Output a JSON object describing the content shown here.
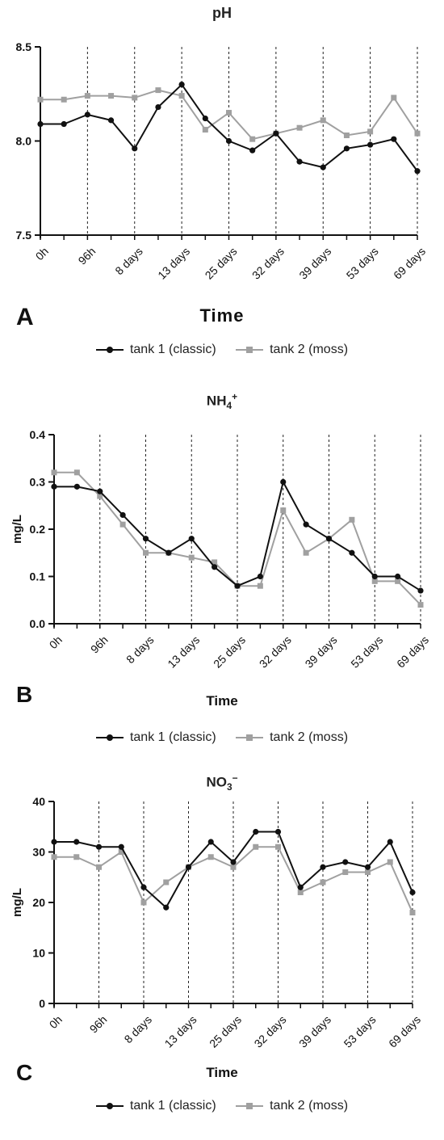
{
  "colors": {
    "tank1": "#111111",
    "tank2": "#a0a0a0"
  },
  "chart_data": [
    {
      "type": "line",
      "panel": "A",
      "title": "pH",
      "xlabel": "Time",
      "ylabel": "",
      "ylim": [
        7.5,
        8.5
      ],
      "yticks": [
        "7.5",
        "8.0",
        "8.5"
      ],
      "xtick_labels": [
        "0h",
        "96h",
        "8 days",
        "13 days",
        "25 days",
        "32 days",
        "39 days",
        "53 days",
        "69 days"
      ],
      "grid": "dashed vertical lines at labeled ticks",
      "legend": "bottom",
      "series": [
        {
          "name": "tank 1 (classic)",
          "marker": "circle",
          "values": [
            8.09,
            8.09,
            8.14,
            8.11,
            7.96,
            8.18,
            8.3,
            8.12,
            8.0,
            7.95,
            8.04,
            7.89,
            7.86,
            7.96,
            7.98,
            8.01,
            7.84
          ]
        },
        {
          "name": "tank 2 (moss)",
          "marker": "square",
          "values": [
            8.22,
            8.22,
            8.24,
            8.24,
            8.23,
            8.27,
            8.24,
            8.06,
            8.15,
            8.01,
            8.04,
            8.07,
            8.11,
            8.03,
            8.05,
            8.23,
            8.04
          ]
        }
      ]
    },
    {
      "type": "line",
      "panel": "B",
      "title": "NH4+",
      "title_base": "NH",
      "title_sub": "4",
      "title_sup": "+",
      "xlabel": "Time",
      "ylabel": "mg/L",
      "ylim": [
        0,
        0.4
      ],
      "yticks": [
        "0.0",
        "0.1",
        "0.2",
        "0.3",
        "0.4"
      ],
      "xtick_labels": [
        "0h",
        "96h",
        "8 days",
        "13 days",
        "25 days",
        "32 days",
        "39 days",
        "53 days",
        "69 days"
      ],
      "grid": "dashed vertical lines at labeled ticks",
      "legend": "bottom",
      "series": [
        {
          "name": "tank 1 (classic)",
          "marker": "circle",
          "values": [
            0.29,
            0.29,
            0.28,
            0.23,
            0.18,
            0.15,
            0.18,
            0.12,
            0.08,
            0.1,
            0.3,
            0.21,
            0.18,
            0.15,
            0.1,
            0.1,
            0.07
          ]
        },
        {
          "name": "tank 2 (moss)",
          "marker": "square",
          "values": [
            0.32,
            0.32,
            0.27,
            0.21,
            0.15,
            0.15,
            0.14,
            0.13,
            0.08,
            0.08,
            0.24,
            0.15,
            0.18,
            0.22,
            0.09,
            0.09,
            0.04
          ]
        }
      ]
    },
    {
      "type": "line",
      "panel": "C",
      "title": "NO3−",
      "title_base": "NO",
      "title_sub": "3",
      "title_sup": "−",
      "xlabel": "Time",
      "ylabel": "mg/L",
      "ylim": [
        0,
        40
      ],
      "yticks": [
        "0",
        "10",
        "20",
        "30",
        "40"
      ],
      "xtick_labels": [
        "0h",
        "96h",
        "8 days",
        "13 days",
        "25 days",
        "32 days",
        "39 days",
        "53 days",
        "69 days"
      ],
      "grid": "dashed vertical lines at labeled ticks",
      "legend": "bottom",
      "series": [
        {
          "name": "tank 1 (classic)",
          "marker": "circle",
          "values": [
            32,
            32,
            31,
            31,
            23,
            19,
            27,
            32,
            28,
            34,
            34,
            23,
            27,
            28,
            27,
            32,
            22
          ]
        },
        {
          "name": "tank 2 (moss)",
          "marker": "square",
          "values": [
            29,
            29,
            27,
            30,
            20,
            24,
            27,
            29,
            27,
            31,
            31,
            22,
            24,
            26,
            26,
            28,
            18
          ]
        }
      ]
    }
  ]
}
